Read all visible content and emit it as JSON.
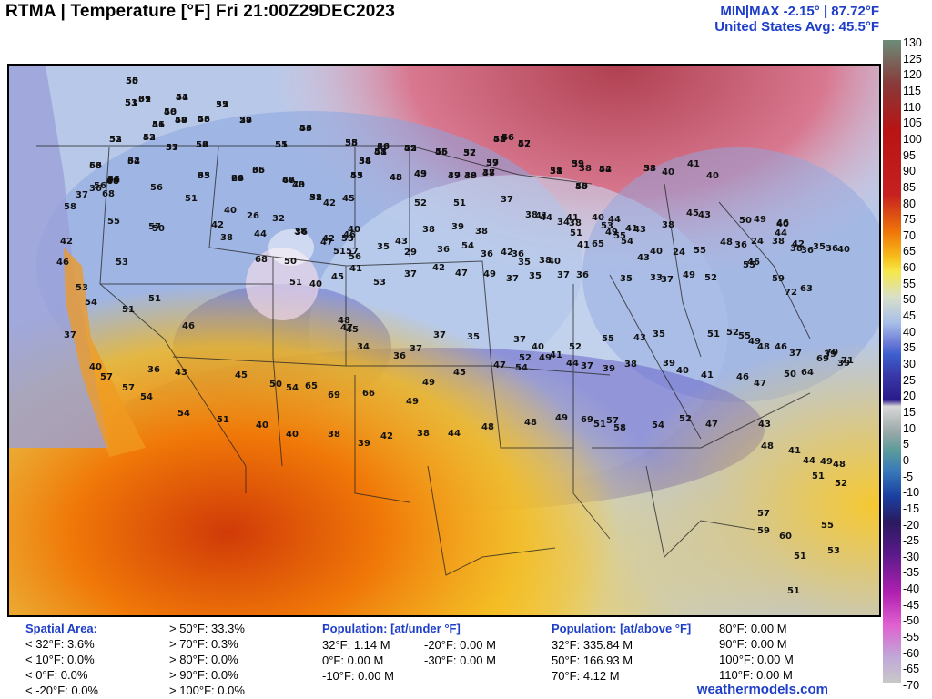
{
  "header": {
    "title": "RTMA | Temperature [°F]  Fri 21:00Z29DEC2023",
    "minmax": "MIN|MAX -2.15°  |  87.72°F",
    "avg": "United States Avg: 45.5°F"
  },
  "colorbar": {
    "labels": [
      "130",
      "125",
      "120",
      "115",
      "110",
      "105",
      "100",
      "95",
      "90",
      "85",
      "80",
      "75",
      "70",
      "65",
      "60",
      "55",
      "50",
      "45",
      "40",
      "35",
      "30",
      "25",
      "20",
      "15",
      "10",
      "5",
      "0",
      "-5",
      "-10",
      "-15",
      "-20",
      "-25",
      "-30",
      "-35",
      "-40",
      "-45",
      "-50",
      "-55",
      "-60",
      "-65",
      "-70"
    ]
  },
  "map_values": [
    {
      "t": "55"
    },
    {
      "t": "44"
    },
    {
      "t": "35"
    },
    {
      "t": "51"
    },
    {
      "t": "39"
    },
    {
      "t": "40"
    },
    {
      "t": "43"
    },
    {
      "t": "29"
    },
    {
      "t": "49"
    },
    {
      "t": "46"
    },
    {
      "t": "46"
    },
    {
      "t": "52"
    },
    {
      "t": "43"
    },
    {
      "t": "37"
    },
    {
      "t": "52"
    },
    {
      "t": "51"
    },
    {
      "t": "35"
    },
    {
      "t": "41"
    },
    {
      "t": "36"
    },
    {
      "t": "34"
    },
    {
      "t": "42"
    },
    {
      "t": "46"
    },
    {
      "t": "37"
    },
    {
      "t": "45"
    },
    {
      "t": "46"
    },
    {
      "t": "42"
    },
    {
      "t": "37"
    },
    {
      "t": "34"
    },
    {
      "t": "36"
    },
    {
      "t": "32"
    },
    {
      "t": "53"
    },
    {
      "t": "46"
    },
    {
      "t": "33"
    },
    {
      "t": "29"
    },
    {
      "t": "36"
    },
    {
      "t": "47"
    },
    {
      "t": "43"
    },
    {
      "t": "45"
    },
    {
      "t": "48"
    },
    {
      "t": "43"
    },
    {
      "t": "39"
    },
    {
      "t": "38"
    },
    {
      "t": "37"
    },
    {
      "t": "38"
    },
    {
      "t": "39"
    },
    {
      "t": "40"
    },
    {
      "t": "42"
    },
    {
      "t": "38"
    },
    {
      "t": "40"
    },
    {
      "t": "41"
    },
    {
      "t": "40"
    },
    {
      "t": "38"
    },
    {
      "t": "36"
    },
    {
      "t": "37"
    },
    {
      "t": "56"
    },
    {
      "t": "68"
    },
    {
      "t": "56"
    },
    {
      "t": "51"
    },
    {
      "t": "42"
    },
    {
      "t": "45"
    },
    {
      "t": "52"
    },
    {
      "t": "51"
    },
    {
      "t": "37"
    },
    {
      "t": "38"
    },
    {
      "t": "44"
    },
    {
      "t": "41"
    },
    {
      "t": "40"
    },
    {
      "t": "44"
    },
    {
      "t": "43"
    },
    {
      "t": "41"
    },
    {
      "t": "38"
    },
    {
      "t": "45"
    },
    {
      "t": "43"
    },
    {
      "t": "50"
    },
    {
      "t": "49"
    },
    {
      "t": "58"
    },
    {
      "t": "55"
    },
    {
      "t": "57"
    },
    {
      "t": "50"
    },
    {
      "t": "42"
    },
    {
      "t": "40"
    },
    {
      "t": "26"
    },
    {
      "t": "32"
    },
    {
      "t": "42"
    },
    {
      "t": "40"
    },
    {
      "t": "38"
    },
    {
      "t": "39"
    },
    {
      "t": "38"
    },
    {
      "t": "41"
    },
    {
      "t": "34"
    },
    {
      "t": "38"
    },
    {
      "t": "51"
    },
    {
      "t": "53"
    },
    {
      "t": "49"
    },
    {
      "t": "55"
    },
    {
      "t": "36"
    },
    {
      "t": "24"
    },
    {
      "t": "40"
    },
    {
      "t": "46"
    },
    {
      "t": "42"
    },
    {
      "t": "38"
    },
    {
      "t": "44"
    },
    {
      "t": "38"
    },
    {
      "t": "36"
    },
    {
      "t": "47"
    },
    {
      "t": "51"
    },
    {
      "t": "57"
    },
    {
      "t": "56"
    },
    {
      "t": "46"
    },
    {
      "t": "53"
    },
    {
      "t": "35"
    },
    {
      "t": "43"
    },
    {
      "t": "29"
    },
    {
      "t": "36"
    },
    {
      "t": "54"
    },
    {
      "t": "36"
    },
    {
      "t": "42"
    },
    {
      "t": "36"
    },
    {
      "t": "35"
    },
    {
      "t": "38"
    },
    {
      "t": "40"
    },
    {
      "t": "41"
    },
    {
      "t": "65"
    },
    {
      "t": "54"
    },
    {
      "t": "43"
    },
    {
      "t": "40"
    },
    {
      "t": "24"
    },
    {
      "t": "55"
    },
    {
      "t": "48"
    },
    {
      "t": "46"
    },
    {
      "t": "38"
    },
    {
      "t": "44"
    },
    {
      "t": "42"
    },
    {
      "t": "38"
    },
    {
      "t": "36"
    },
    {
      "t": "35"
    },
    {
      "t": "36"
    },
    {
      "t": "40"
    },
    {
      "t": "46"
    },
    {
      "t": "53"
    },
    {
      "t": "50"
    },
    {
      "t": "68"
    },
    {
      "t": "51"
    },
    {
      "t": "40"
    },
    {
      "t": "45"
    },
    {
      "t": "41"
    },
    {
      "t": "53"
    },
    {
      "t": "37"
    },
    {
      "t": "42"
    },
    {
      "t": "47"
    },
    {
      "t": "49"
    },
    {
      "t": "37"
    },
    {
      "t": "35"
    },
    {
      "t": "37"
    },
    {
      "t": "36"
    },
    {
      "t": "35"
    },
    {
      "t": "33"
    },
    {
      "t": "37"
    },
    {
      "t": "49"
    },
    {
      "t": "52"
    },
    {
      "t": "55"
    },
    {
      "t": "59"
    },
    {
      "t": "72"
    },
    {
      "t": "63"
    },
    {
      "t": "53"
    },
    {
      "t": "54"
    },
    {
      "t": "51"
    },
    {
      "t": "51"
    },
    {
      "t": "46"
    },
    {
      "t": "48"
    },
    {
      "t": "47"
    },
    {
      "t": "45"
    },
    {
      "t": "34"
    },
    {
      "t": "36"
    },
    {
      "t": "37"
    },
    {
      "t": "37"
    },
    {
      "t": "35"
    },
    {
      "t": "37"
    },
    {
      "t": "40"
    },
    {
      "t": "41"
    },
    {
      "t": "52"
    },
    {
      "t": "55"
    },
    {
      "t": "43"
    },
    {
      "t": "35"
    },
    {
      "t": "51"
    },
    {
      "t": "52"
    },
    {
      "t": "55"
    },
    {
      "t": "49"
    },
    {
      "t": "48"
    },
    {
      "t": "46"
    },
    {
      "t": "37"
    },
    {
      "t": "39"
    },
    {
      "t": "39"
    },
    {
      "t": "37"
    },
    {
      "t": "40"
    },
    {
      "t": "36"
    },
    {
      "t": "43"
    },
    {
      "t": "45"
    },
    {
      "t": "50"
    },
    {
      "t": "54"
    },
    {
      "t": "65"
    },
    {
      "t": "69"
    },
    {
      "t": "66"
    },
    {
      "t": "49"
    },
    {
      "t": "49"
    },
    {
      "t": "45"
    },
    {
      "t": "47"
    },
    {
      "t": "54"
    },
    {
      "t": "52"
    },
    {
      "t": "49"
    },
    {
      "t": "44"
    },
    {
      "t": "37"
    },
    {
      "t": "39"
    },
    {
      "t": "38"
    },
    {
      "t": "39"
    },
    {
      "t": "40"
    },
    {
      "t": "41"
    },
    {
      "t": "46"
    },
    {
      "t": "47"
    },
    {
      "t": "50"
    },
    {
      "t": "64"
    },
    {
      "t": "69"
    },
    {
      "t": "70"
    },
    {
      "t": "71"
    },
    {
      "t": "57"
    },
    {
      "t": "57"
    },
    {
      "t": "54"
    },
    {
      "t": "54"
    },
    {
      "t": "51"
    },
    {
      "t": "40"
    },
    {
      "t": "40"
    },
    {
      "t": "38"
    },
    {
      "t": "39"
    },
    {
      "t": "42"
    },
    {
      "t": "38"
    },
    {
      "t": "44"
    },
    {
      "t": "48"
    },
    {
      "t": "48"
    },
    {
      "t": "49"
    },
    {
      "t": "69"
    },
    {
      "t": "51"
    },
    {
      "t": "57"
    },
    {
      "t": "58"
    },
    {
      "t": "54"
    },
    {
      "t": "52"
    },
    {
      "t": "47"
    },
    {
      "t": "43"
    },
    {
      "t": "48"
    },
    {
      "t": "41"
    },
    {
      "t": "44"
    },
    {
      "t": "49"
    },
    {
      "t": "48"
    },
    {
      "t": "51"
    },
    {
      "t": "52"
    },
    {
      "t": "57"
    },
    {
      "t": "59"
    },
    {
      "t": "60"
    },
    {
      "t": "55"
    },
    {
      "t": "53"
    },
    {
      "t": "51"
    },
    {
      "t": "51"
    },
    {
      "t": "50"
    },
    {
      "t": "51"
    },
    {
      "t": "52"
    },
    {
      "t": "53"
    },
    {
      "t": "61"
    },
    {
      "t": "58"
    },
    {
      "t": "56"
    },
    {
      "t": "54"
    },
    {
      "t": "54"
    },
    {
      "t": "51"
    },
    {
      "t": "53"
    },
    {
      "t": "53"
    },
    {
      "t": "52"
    },
    {
      "t": "53"
    },
    {
      "t": "56"
    },
    {
      "t": "55"
    },
    {
      "t": "58"
    },
    {
      "t": "58"
    },
    {
      "t": "60"
    },
    {
      "t": "58"
    },
    {
      "t": "55"
    },
    {
      "t": "55"
    },
    {
      "t": "52"
    },
    {
      "t": "52"
    },
    {
      "t": "56"
    },
    {
      "t": "57"
    },
    {
      "t": "59"
    },
    {
      "t": "62"
    },
    {
      "t": "61"
    },
    {
      "t": "58"
    },
    {
      "t": "66"
    },
    {
      "t": "68"
    },
    {
      "t": "65"
    },
    {
      "t": "64"
    },
    {
      "t": "65"
    },
    {
      "t": "66"
    },
    {
      "t": "70"
    },
    {
      "t": "53"
    },
    {
      "t": "43"
    },
    {
      "t": "49"
    },
    {
      "t": "47"
    },
    {
      "t": "49"
    },
    {
      "t": "48"
    },
    {
      "t": "51"
    },
    {
      "t": "53"
    },
    {
      "t": "55"
    },
    {
      "t": "54"
    },
    {
      "t": "53"
    }
  ],
  "stats_left": {
    "heading": "Spatial Area:",
    "rows": [
      "< 32°F: 3.6%",
      "< 10°F: 0.0%",
      "< 0°F: 0.0%",
      "< -20°F: 0.0%"
    ],
    "rows2": [
      "> 50°F: 33.3%",
      "> 70°F: 0.3%",
      "> 80°F: 0.0%",
      "> 90°F: 0.0%",
      "> 100°F: 0.0%"
    ]
  },
  "stats_pop_under": {
    "heading": "Population: [at/under °F]",
    "col1": [
      "32°F: 1.14 M",
      "0°F: 0.00 M",
      "-10°F: 0.00 M"
    ],
    "col2": [
      "-20°F: 0.00 M",
      "-30°F: 0.00 M"
    ]
  },
  "stats_pop_above": {
    "heading": "Population: [at/above °F]",
    "col1": [
      "32°F: 335.84 M",
      "50°F: 166.93 M",
      "70°F: 4.12 M"
    ],
    "col2": [
      "80°F: 0.00 M",
      "90°F: 0.00 M",
      "100°F: 0.00 M",
      "110°F: 0.00 M"
    ]
  },
  "credit": "weathermodels.com"
}
